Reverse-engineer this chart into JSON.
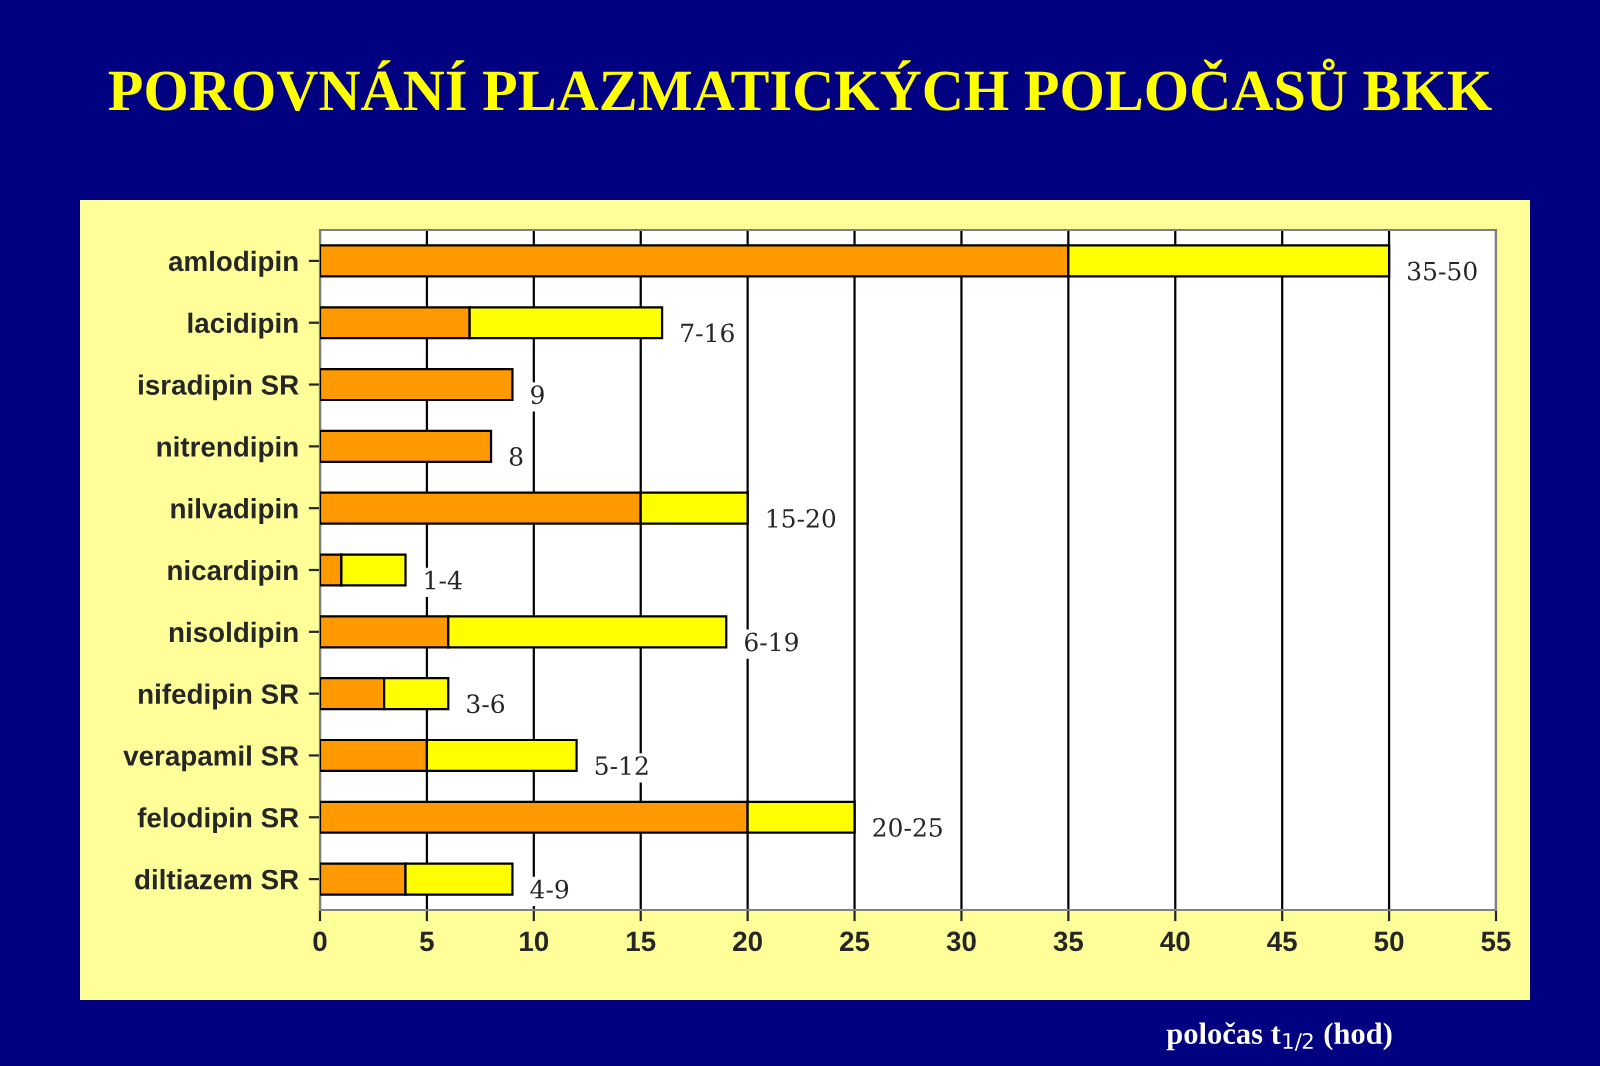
{
  "chart_data": {
    "type": "bar",
    "title": "POROVNÁNÍ PLAZMATICKÝCH POLOČASŮ BKK",
    "xlabel": "poločas t$_{1/2}$ (hod)",
    "orientation": "horizontal",
    "stacked": true,
    "categories": [
      "amlodipin",
      "lacidipin",
      "isradipin SR",
      "nitrendipin",
      "nilvadipin",
      "nicardipin",
      "nisoldipin",
      "nifedipin SR",
      "verapamil SR",
      "felodipin SR",
      "diltiazem SR"
    ],
    "series": [
      {
        "color": "#ff9900",
        "values": [
          35,
          7,
          9,
          8,
          15,
          1,
          6,
          3,
          5,
          20,
          4
        ]
      },
      {
        "color": "#ffff00",
        "values": [
          15,
          9,
          null,
          null,
          5,
          3,
          13,
          3,
          7,
          5,
          5
        ],
        "value_labels": [
          "35-50",
          "7-16",
          "9",
          "8",
          "15-20",
          "1-4",
          "6-19",
          "3-6",
          "5-12",
          "20-25",
          "4-9"
        ]
      }
    ],
    "xlim": [
      0,
      55
    ],
    "xticks": [
      0,
      5,
      10,
      15,
      20,
      25,
      30,
      35,
      40,
      45,
      50,
      55
    ],
    "grid": "x"
  }
}
